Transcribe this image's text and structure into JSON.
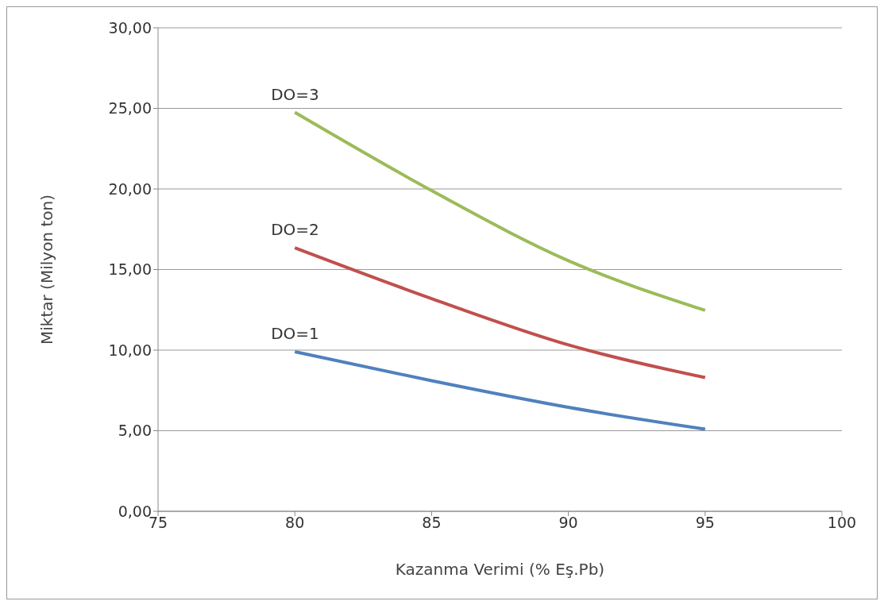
{
  "chart_data": {
    "type": "line",
    "xlabel": "Kazanma Verimi  (% Eş.Pb)",
    "ylabel": "Miktar (Milyon ton)",
    "x": [
      80,
      85,
      90,
      95
    ],
    "series": [
      {
        "name": "DO=1",
        "color": "#4f81bd",
        "values": [
          9.9,
          8.1,
          6.45,
          5.1
        ]
      },
      {
        "name": "DO=2",
        "color": "#c0504d",
        "values": [
          16.35,
          13.2,
          10.33,
          8.3
        ]
      },
      {
        "name": "DO=3",
        "color": "#9bbb59",
        "values": [
          24.75,
          19.9,
          15.55,
          12.47
        ]
      }
    ],
    "xlim": [
      75,
      100
    ],
    "xticks": [
      75,
      80,
      85,
      90,
      95,
      100
    ],
    "ylim": [
      0,
      30
    ],
    "yticks": [
      {
        "value": 0,
        "label": "0,00"
      },
      {
        "value": 5,
        "label": "5,00"
      },
      {
        "value": 10,
        "label": "10,00"
      },
      {
        "value": 15,
        "label": "15,00"
      },
      {
        "value": 20,
        "label": "20,00"
      },
      {
        "value": 25,
        "label": "25,00"
      },
      {
        "value": 30,
        "label": "30,00"
      }
    ],
    "grid": "y",
    "legend": false,
    "marker": "none",
    "line_style": "solid"
  }
}
